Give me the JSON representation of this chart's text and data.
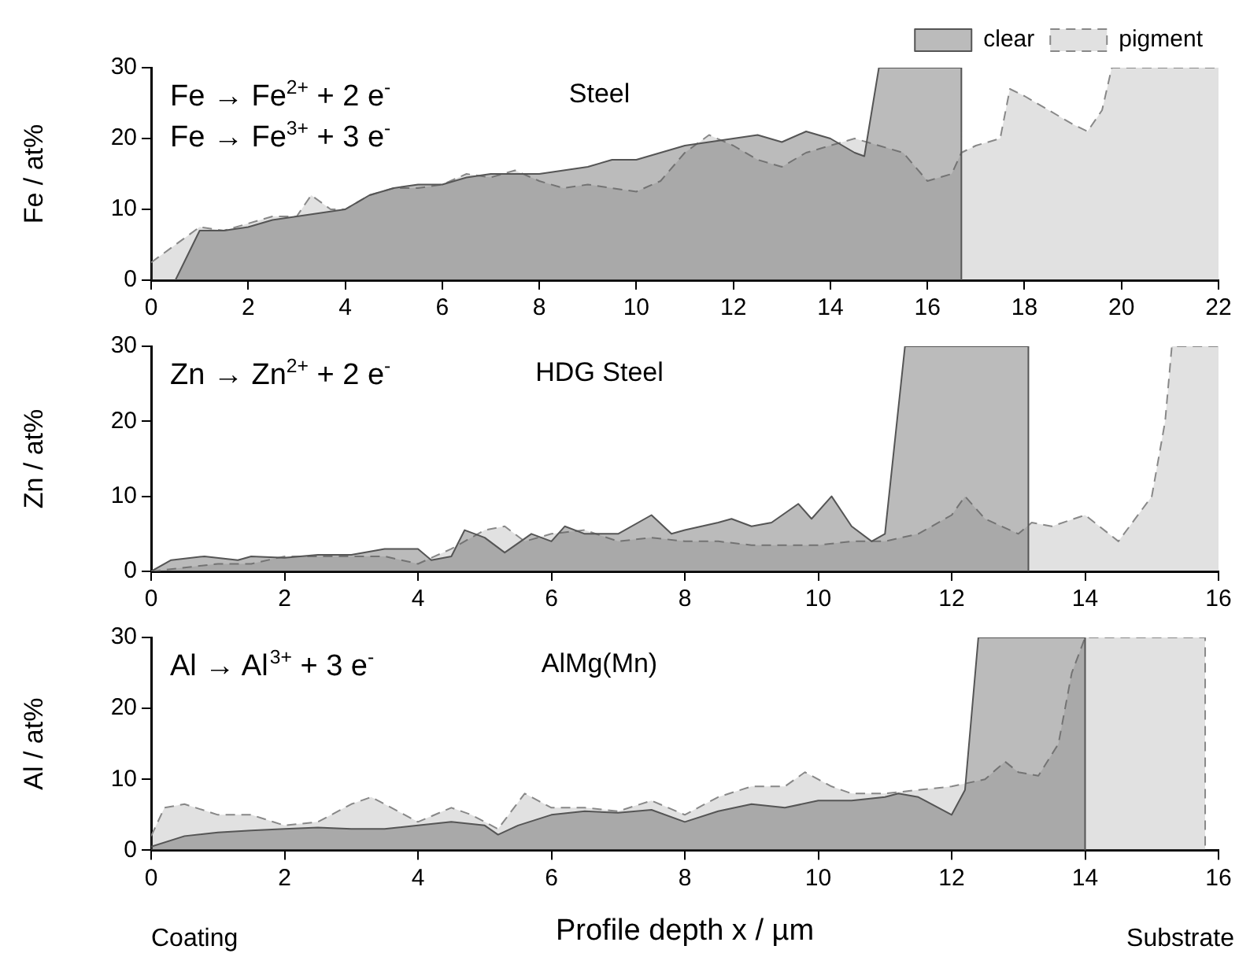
{
  "chart_data": [
    {
      "type": "area",
      "title": "Steel",
      "ylabel": "Fe / at%",
      "annotations": [
        "Fe → Fe$^{2+}$ + 2 e$^{-}$",
        "Fe → Fe$^{3+}$ + 3 e$^{-}$"
      ],
      "xlim": [
        0,
        22
      ],
      "xticks": [
        0,
        2,
        4,
        6,
        8,
        10,
        12,
        14,
        16,
        18,
        20,
        22
      ],
      "ylim": [
        0,
        30
      ],
      "yticks": [
        0,
        10,
        20,
        30
      ],
      "grid": false,
      "legend": "top right",
      "series": [
        {
          "name": "clear",
          "color": "#555555",
          "line_style": "solid",
          "x": [
            0.5,
            1,
            1.5,
            2,
            2.5,
            3,
            3.5,
            4,
            4.5,
            5,
            5.5,
            6,
            6.5,
            7,
            7.5,
            8,
            8.5,
            9,
            9.5,
            10,
            10.5,
            11,
            11.5,
            12,
            12.5,
            13,
            13.5,
            14,
            14.5,
            14.7,
            15,
            16.7,
            16.7
          ],
          "values": [
            0,
            7,
            7,
            7.5,
            8.5,
            9,
            9.5,
            10,
            12,
            13,
            13.5,
            13.5,
            14.5,
            15,
            15,
            15,
            15.5,
            16,
            17,
            17,
            18,
            19,
            19.5,
            20,
            20.5,
            19.5,
            21,
            20,
            18,
            17.5,
            30,
            30,
            0
          ]
        },
        {
          "name": "pigment",
          "color": "#888888",
          "line_style": "dashed",
          "x": [
            0,
            0.5,
            1,
            1.5,
            2,
            2.5,
            3,
            3.3,
            3.7,
            4,
            4.5,
            5,
            5.5,
            6,
            6.5,
            7,
            7.5,
            8,
            8.5,
            9,
            9.5,
            10,
            10.5,
            11,
            11.5,
            12,
            12.5,
            13,
            13.5,
            14,
            14.5,
            15,
            15.5,
            16,
            16.5,
            16.7,
            17,
            17.5,
            17.7,
            18,
            18.5,
            19,
            19.3,
            19.6,
            19.8,
            22
          ],
          "values": [
            2.5,
            5,
            7.5,
            7,
            8,
            9,
            9,
            12,
            10,
            10,
            12,
            13,
            13,
            13.5,
            15,
            14.5,
            15.5,
            14,
            13,
            13.5,
            13,
            12.5,
            14,
            18,
            20.5,
            19,
            17,
            16,
            18,
            19,
            20,
            19,
            18,
            14,
            15,
            18,
            19,
            20,
            27,
            26,
            24,
            22,
            21,
            24,
            30,
            30
          ]
        }
      ]
    },
    {
      "type": "area",
      "title": "HDG Steel",
      "ylabel": "Zn / at%",
      "annotations": [
        "Zn → Zn$^{2+}$ + 2 e$^{-}$"
      ],
      "xlim": [
        0,
        16
      ],
      "xticks": [
        0,
        2,
        4,
        6,
        8,
        10,
        12,
        14,
        16
      ],
      "ylim": [
        0,
        30
      ],
      "yticks": [
        0,
        10,
        20,
        30
      ],
      "grid": false,
      "series": [
        {
          "color": "#555555",
          "line_style": "solid",
          "x": [
            0,
            0.3,
            0.8,
            1.3,
            1.5,
            2,
            2.5,
            3,
            3.5,
            4,
            4.2,
            4.5,
            4.7,
            5,
            5.3,
            5.7,
            6,
            6.2,
            6.5,
            7,
            7.5,
            7.8,
            8,
            8.5,
            8.7,
            9,
            9.3,
            9.7,
            9.9,
            10.2,
            10.5,
            10.8,
            11,
            11.3,
            13.15,
            13.15
          ],
          "values": [
            0,
            1.5,
            2,
            1.5,
            2,
            1.8,
            2.2,
            2.2,
            3,
            3,
            1.5,
            2,
            5.5,
            4.5,
            2.5,
            5,
            4,
            6,
            5,
            5,
            7.5,
            5,
            5.5,
            6.5,
            7,
            6,
            6.5,
            9,
            7,
            10,
            6,
            4,
            5,
            30,
            30,
            0
          ]
        },
        {
          "color": "#888888",
          "line_style": "dashed",
          "x": [
            0,
            0.5,
            1,
            1.5,
            2,
            2.5,
            3,
            3.5,
            4,
            4.5,
            5,
            5.3,
            5.6,
            6,
            6.5,
            7,
            7.5,
            8,
            8.5,
            9,
            9.5,
            10,
            10.5,
            11,
            11.5,
            12,
            12.2,
            12.5,
            13,
            13.2,
            13.5,
            14,
            14.5,
            15,
            15.2,
            15.3,
            16
          ],
          "values": [
            0,
            0.5,
            1,
            1,
            2,
            2,
            2,
            2,
            1,
            3,
            5.5,
            6,
            4,
            5,
            5.5,
            4,
            4.5,
            4,
            4,
            3.5,
            3.5,
            3.5,
            4,
            4,
            5,
            7.5,
            10,
            7,
            5,
            6.5,
            6,
            7.5,
            4,
            10,
            20,
            30,
            30
          ]
        }
      ]
    },
    {
      "type": "area",
      "title": "AlMg(Mn)",
      "ylabel": "Al / at%",
      "xlabel": "Profile depth x / µm",
      "annotations": [
        "Al → Al$^{3+}$ + 3 e$^{-}$",
        "Coating",
        "Substrate"
      ],
      "xlim": [
        0,
        16
      ],
      "xticks": [
        0,
        2,
        4,
        6,
        8,
        10,
        12,
        14,
        16
      ],
      "ylim": [
        0,
        30
      ],
      "yticks": [
        0,
        10,
        20,
        30
      ],
      "grid": false,
      "series": [
        {
          "color": "#555555",
          "line_style": "solid",
          "x": [
            0,
            0.5,
            1,
            1.5,
            2,
            2.5,
            3,
            3.5,
            4,
            4.5,
            5,
            5.2,
            5.5,
            6,
            6.5,
            7,
            7.5,
            8,
            8.5,
            9,
            9.5,
            10,
            10.5,
            11,
            11.2,
            11.5,
            12,
            12.2,
            12.4,
            14,
            14
          ],
          "values": [
            0.5,
            2,
            2.5,
            2.8,
            3,
            3.2,
            3,
            3,
            3.5,
            4,
            3.5,
            2.2,
            3.5,
            5,
            5.5,
            5.3,
            5.7,
            4,
            5.5,
            6.5,
            6,
            7,
            7,
            7.5,
            8,
            7.5,
            5,
            8.5,
            30,
            30,
            0
          ]
        },
        {
          "color": "#888888",
          "line_style": "dashed",
          "x": [
            0,
            0.2,
            0.5,
            1,
            1.5,
            2,
            2.5,
            3,
            3.3,
            3.7,
            4,
            4.5,
            4.8,
            5.2,
            5.6,
            6,
            6.5,
            7,
            7.5,
            8,
            8.5,
            9,
            9.5,
            9.8,
            10.2,
            10.5,
            11,
            11.5,
            12,
            12.5,
            12.8,
            13,
            13.3,
            13.6,
            13.8,
            14,
            15.8,
            15.8
          ],
          "values": [
            2,
            6,
            6.5,
            5,
            5,
            3.5,
            4,
            6.5,
            7.5,
            5.5,
            4,
            6,
            5,
            3,
            8,
            6,
            6,
            5.5,
            7,
            5,
            7.5,
            9,
            9,
            11,
            9,
            8,
            8,
            8.5,
            9,
            10,
            12.5,
            11,
            10.5,
            15,
            25,
            30,
            30,
            0
          ]
        }
      ]
    }
  ]
}
